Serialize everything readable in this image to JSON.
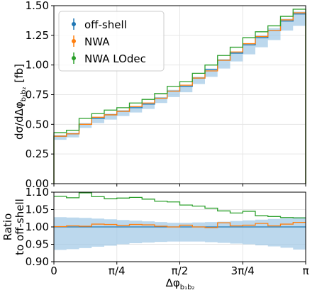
{
  "chart_data": [
    {
      "type": "line",
      "panel": "main",
      "xlabel": "Δφ",
      "xlabel_sub": "b₁b₂",
      "ylabel": "dσ/dΔφ",
      "ylabel_sub": "b₁b₂",
      "ylabel_unit": "[fb]",
      "xlim": [
        0,
        3.14159
      ],
      "ylim": [
        0,
        1.5
      ],
      "y_ticks": [
        "0.00",
        "0.25",
        "0.50",
        "0.75",
        "1.00",
        "1.25",
        "1.50"
      ],
      "x_ticks": [
        "0",
        "π/4",
        "π/2",
        "3π/4",
        "π"
      ],
      "grid": true,
      "bins": 20,
      "legend_placement": "top-left",
      "series": [
        {
          "name": "off-shell",
          "color": "#1f77b4",
          "style": "step",
          "values": [
            0.4,
            0.42,
            0.5,
            0.55,
            0.58,
            0.61,
            0.64,
            0.67,
            0.72,
            0.78,
            0.82,
            0.89,
            0.96,
            1.04,
            1.1,
            1.17,
            1.23,
            1.29,
            1.37,
            1.43
          ]
        },
        {
          "name": "NWA",
          "color": "#ff7f0e",
          "style": "step",
          "values": [
            0.4,
            0.42,
            0.5,
            0.56,
            0.58,
            0.61,
            0.65,
            0.68,
            0.72,
            0.78,
            0.83,
            0.89,
            0.95,
            1.04,
            1.11,
            1.18,
            1.24,
            1.29,
            1.38,
            1.44
          ]
        },
        {
          "name": "NWA LOdec",
          "color": "#2ca02c",
          "style": "step",
          "values": [
            0.43,
            0.45,
            0.55,
            0.59,
            0.62,
            0.64,
            0.68,
            0.71,
            0.76,
            0.82,
            0.86,
            0.93,
            1.0,
            1.08,
            1.15,
            1.23,
            1.28,
            1.33,
            1.41,
            1.47
          ]
        }
      ],
      "band": {
        "color": "#9fc8e6",
        "of": "off-shell",
        "lower": [
          0.37,
          0.39,
          0.47,
          0.51,
          0.54,
          0.57,
          0.6,
          0.63,
          0.68,
          0.73,
          0.77,
          0.84,
          0.9,
          0.97,
          1.03,
          1.09,
          1.15,
          1.21,
          1.29,
          1.33
        ],
        "upper": [
          0.41,
          0.43,
          0.51,
          0.56,
          0.59,
          0.62,
          0.65,
          0.68,
          0.73,
          0.79,
          0.83,
          0.9,
          0.97,
          1.05,
          1.11,
          1.18,
          1.25,
          1.31,
          1.39,
          1.45
        ]
      }
    },
    {
      "type": "line",
      "panel": "ratio",
      "ylabel_lines": [
        "Ratio",
        "to off-shell"
      ],
      "xlim": [
        0,
        3.14159
      ],
      "ylim": [
        0.9,
        1.1
      ],
      "y_ticks": [
        "0.90",
        "0.95",
        "1.00",
        "1.05",
        "1.10"
      ],
      "grid": true,
      "series": [
        {
          "name": "off-shell",
          "color": "#1f77b4",
          "style": "step",
          "values": [
            1.0,
            1.0,
            1.0,
            1.0,
            1.0,
            1.0,
            1.0,
            1.0,
            1.0,
            1.0,
            1.0,
            1.0,
            1.0,
            1.0,
            1.0,
            1.0,
            1.0,
            1.0,
            1.0,
            1.0
          ]
        },
        {
          "name": "NWA",
          "color": "#ff7f0e",
          "style": "step",
          "values": [
            1.001,
            1.003,
            1.002,
            1.008,
            1.007,
            1.004,
            1.007,
            1.006,
            1.002,
            1.0,
            1.005,
            1.0,
            0.998,
            1.012,
            1.003,
            1.005,
            1.01,
            1.003,
            1.008,
            1.013
          ]
        },
        {
          "name": "NWA LOdec",
          "color": "#2ca02c",
          "style": "step",
          "values": [
            1.088,
            1.084,
            1.098,
            1.087,
            1.081,
            1.083,
            1.085,
            1.08,
            1.074,
            1.072,
            1.063,
            1.06,
            1.054,
            1.046,
            1.04,
            1.045,
            1.032,
            1.03,
            1.027,
            1.026
          ]
        }
      ],
      "band": {
        "color": "#9fc8e6",
        "lower": [
          0.934,
          0.936,
          0.939,
          0.943,
          0.946,
          0.95,
          0.953,
          0.955,
          0.957,
          0.958,
          0.958,
          0.958,
          0.956,
          0.954,
          0.952,
          0.95,
          0.947,
          0.944,
          0.94,
          0.935
        ],
        "upper": [
          1.028,
          1.027,
          1.026,
          1.024,
          1.022,
          1.02,
          1.018,
          1.016,
          1.014,
          1.012,
          1.012,
          1.013,
          1.014,
          1.015,
          1.017,
          1.019,
          1.021,
          1.023,
          1.025,
          1.028
        ]
      }
    }
  ]
}
